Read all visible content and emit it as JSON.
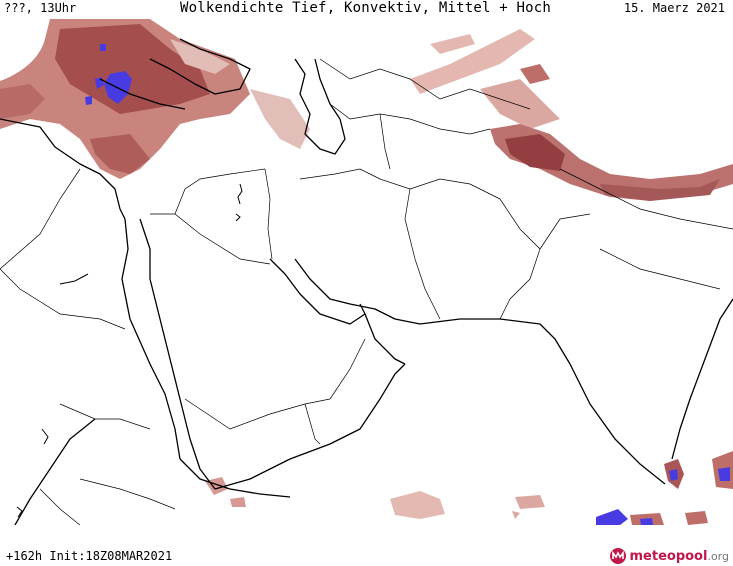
{
  "header": {
    "left": "???, 13Uhr",
    "title": "Wolkendichte  Tief, Konvektiv, Mittel + Hoch",
    "date": "15. Maerz 2021"
  },
  "footer": {
    "run_info": "+162h  Init:18Z08MAR2021",
    "logo_text": "meteopool",
    "logo_suffix": ".org"
  },
  "map": {
    "region": "Middle East / Arabian Peninsula / South Asia",
    "cloud_colors": {
      "light": "#d9a19a",
      "medium": "#b9625d",
      "dense": "#8a2f33",
      "convective": "#3a2be0"
    }
  }
}
